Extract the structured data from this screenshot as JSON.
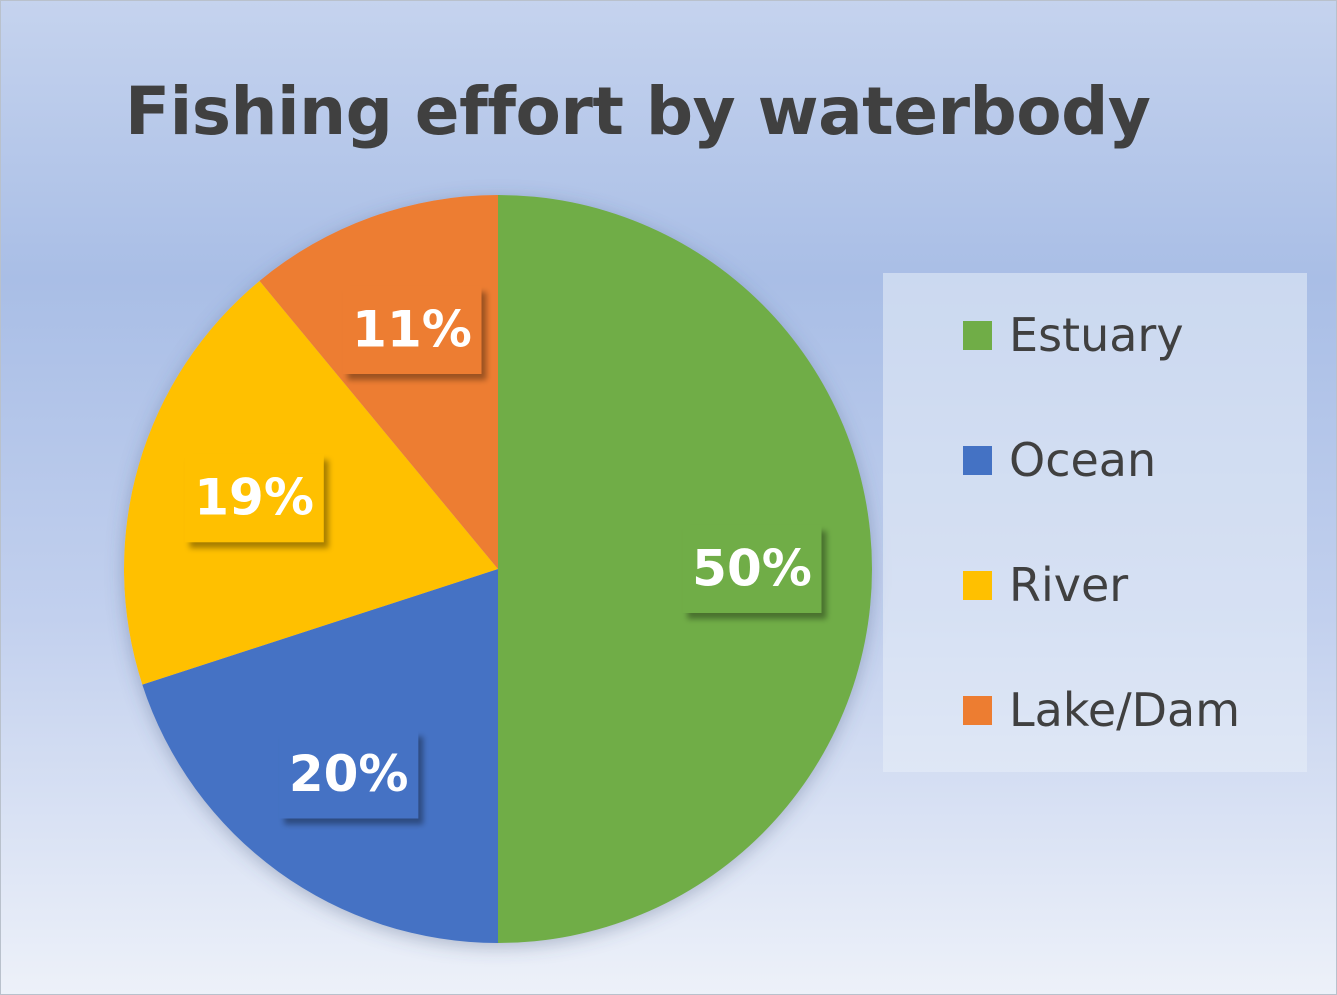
{
  "chart_data": {
    "type": "pie",
    "title": "Fishing effort by waterbody",
    "categories": [
      "Estuary",
      "Ocean",
      "River",
      "Lake/Dam"
    ],
    "values": [
      50,
      20,
      19,
      11
    ],
    "data_labels": [
      "50%",
      "20%",
      "19%",
      "11%"
    ],
    "colors": [
      "#70ad47",
      "#4472c4",
      "#ffc000",
      "#ed7d31"
    ],
    "start_angle": "12 o'clock",
    "direction": "clockwise",
    "legend_position": "right"
  }
}
